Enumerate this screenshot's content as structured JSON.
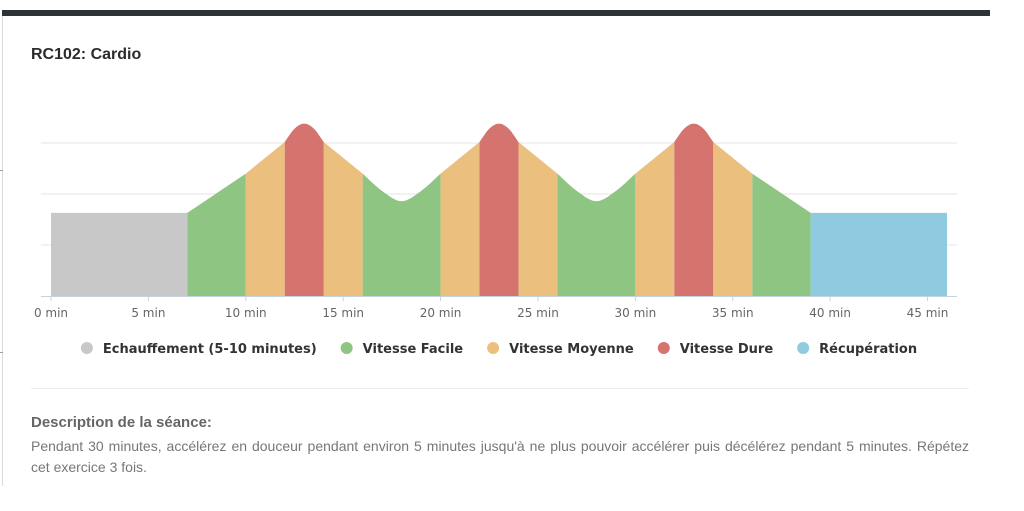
{
  "card": {
    "title": "RC102: Cardio"
  },
  "chart_data": {
    "type": "area",
    "title": "",
    "xlabel": "",
    "ylabel": "",
    "x_unit": "min",
    "xlim": [
      0,
      46
    ],
    "ylim": [
      0,
      3
    ],
    "x_ticks": [
      0,
      5,
      10,
      15,
      20,
      25,
      30,
      35,
      40,
      45
    ],
    "x_tick_labels": [
      "0 min",
      "5 min",
      "10 min",
      "15 min",
      "20 min",
      "25 min",
      "30 min",
      "35 min",
      "40 min",
      "45 min"
    ],
    "grid": "horizontal",
    "legend_position": "bottom",
    "series": [
      {
        "name": "Echauffement (5-10 minutes)",
        "color": "#c8c8c8",
        "segments": [
          {
            "points": [
              [
                0,
                1.63
              ],
              [
                7,
                1.63
              ]
            ]
          }
        ]
      },
      {
        "name": "Vitesse Facile",
        "color": "#8fc582",
        "segments": [
          {
            "points": [
              [
                7,
                1.63
              ],
              [
                10,
                2.4
              ]
            ]
          },
          {
            "points": [
              [
                16,
                2.4
              ],
              [
                17,
                2.06
              ],
              [
                18,
                1.86
              ],
              [
                19,
                2.06
              ],
              [
                20,
                2.4
              ]
            ]
          },
          {
            "points": [
              [
                26,
                2.4
              ],
              [
                27,
                2.06
              ],
              [
                28,
                1.86
              ],
              [
                29,
                2.06
              ],
              [
                30,
                2.4
              ]
            ]
          },
          {
            "points": [
              [
                36,
                2.4
              ],
              [
                39,
                1.63
              ]
            ]
          }
        ]
      },
      {
        "name": "Vitesse Moyenne",
        "color": "#ebc07e",
        "segments": [
          {
            "points": [
              [
                10,
                2.4
              ],
              [
                12,
                3.02
              ]
            ]
          },
          {
            "points": [
              [
                14,
                3.02
              ],
              [
                16,
                2.4
              ]
            ]
          },
          {
            "points": [
              [
                20,
                2.4
              ],
              [
                22,
                3.02
              ]
            ]
          },
          {
            "points": [
              [
                24,
                3.02
              ],
              [
                26,
                2.4
              ]
            ]
          },
          {
            "points": [
              [
                30,
                2.4
              ],
              [
                32,
                3.02
              ]
            ]
          },
          {
            "points": [
              [
                34,
                3.02
              ],
              [
                36,
                2.4
              ]
            ]
          }
        ]
      },
      {
        "name": "Vitesse Dure",
        "color": "#d5736f",
        "segments": [
          {
            "points": [
              [
                12,
                3.02
              ],
              [
                12.5,
                3.28
              ],
              [
                13,
                3.38
              ],
              [
                13.5,
                3.28
              ],
              [
                14,
                3.02
              ]
            ]
          },
          {
            "points": [
              [
                22,
                3.02
              ],
              [
                22.5,
                3.28
              ],
              [
                23,
                3.38
              ],
              [
                23.5,
                3.28
              ],
              [
                24,
                3.02
              ]
            ]
          },
          {
            "points": [
              [
                32,
                3.02
              ],
              [
                32.5,
                3.28
              ],
              [
                33,
                3.38
              ],
              [
                33.5,
                3.28
              ],
              [
                34,
                3.02
              ]
            ]
          }
        ]
      },
      {
        "name": "Récupération",
        "color": "#8ecae0",
        "segments": [
          {
            "points": [
              [
                39,
                1.63
              ],
              [
                46,
                1.63
              ]
            ]
          }
        ]
      }
    ]
  },
  "legend": [
    {
      "label": "Echauffement (5-10 minutes)",
      "color": "#c8c8c8"
    },
    {
      "label": "Vitesse Facile",
      "color": "#8fc582"
    },
    {
      "label": "Vitesse Moyenne",
      "color": "#ebc07e"
    },
    {
      "label": "Vitesse Dure",
      "color": "#d5736f"
    },
    {
      "label": "Récupération",
      "color": "#8ecae0"
    }
  ],
  "description": {
    "title": "Description de la séance:",
    "text": "Pendant 30 minutes, accélérez en douceur pendant environ 5 minutes jusqu'à ne plus pouvoir accélérer puis décélérez pendant 5 minutes. Répétez cet exercice 3 fois."
  }
}
